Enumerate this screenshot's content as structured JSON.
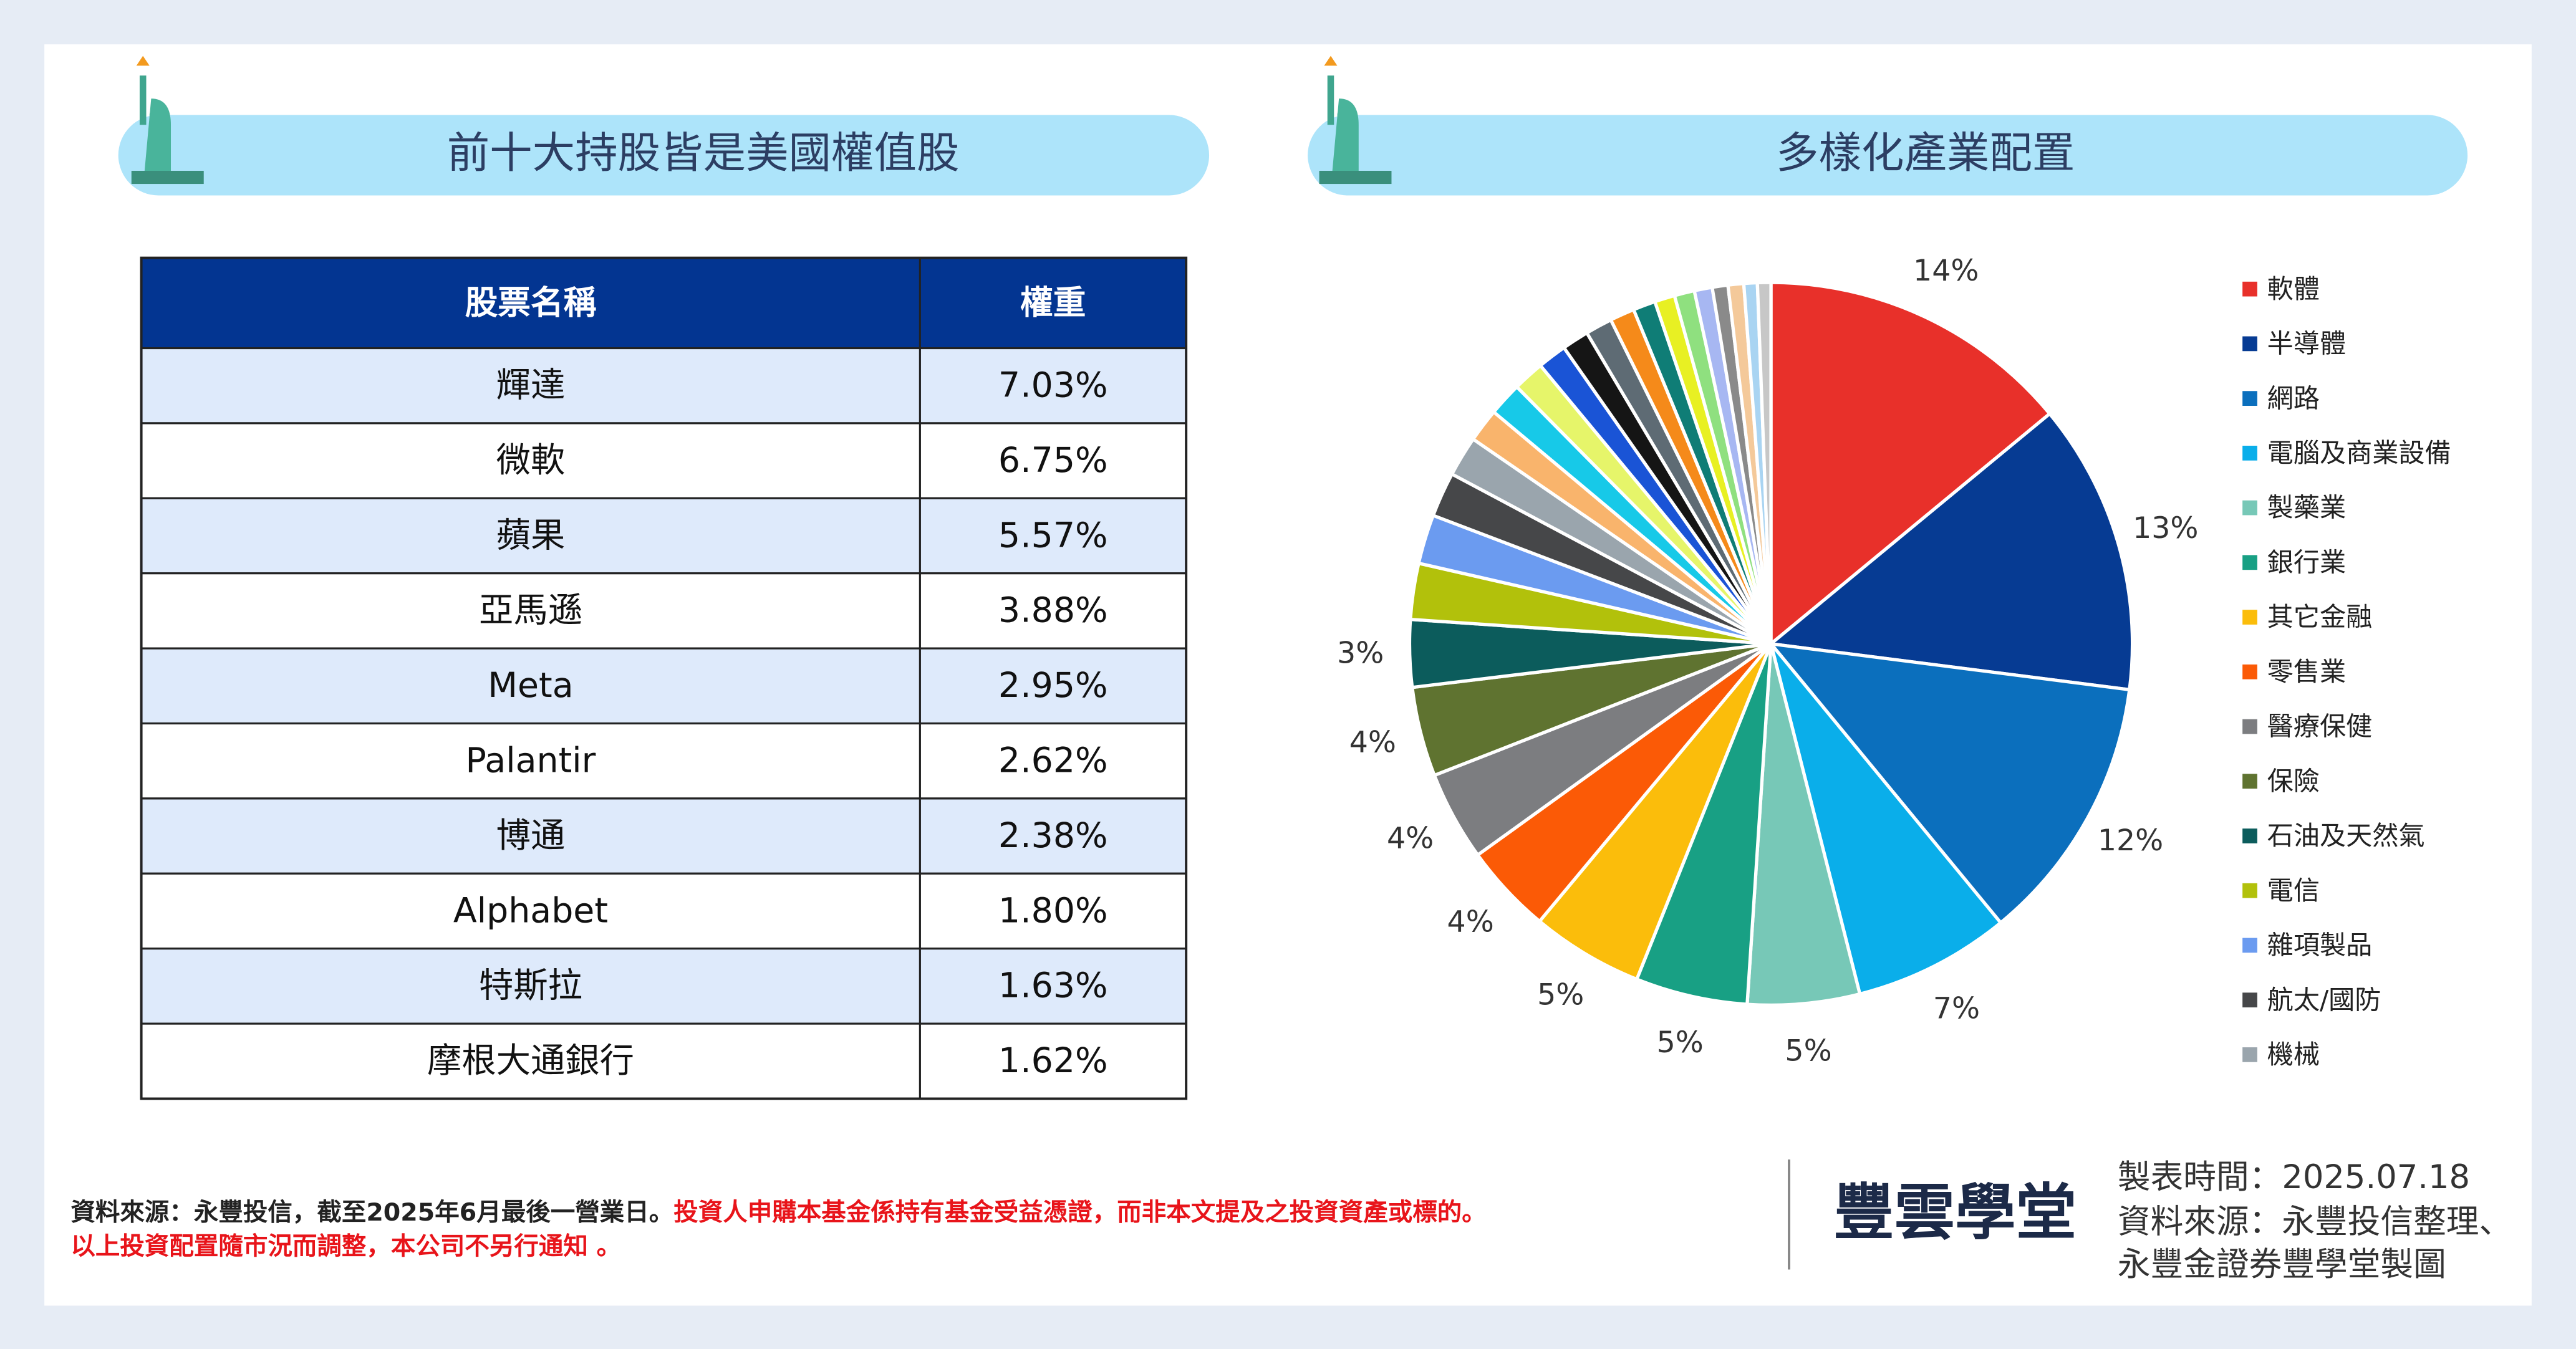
{
  "left_title": "前十大持股皆是美國權值股",
  "table": {
    "headers": [
      "股票名稱",
      "權重"
    ],
    "rows": [
      [
        "輝達",
        "7.03%"
      ],
      [
        "微軟",
        "6.75%"
      ],
      [
        "蘋果",
        "5.57%"
      ],
      [
        "亞馬遜",
        "3.88%"
      ],
      [
        "Meta",
        "2.95%"
      ],
      [
        "Palantir",
        "2.62%"
      ],
      [
        "博通",
        "2.38%"
      ],
      [
        "Alphabet",
        "1.80%"
      ],
      [
        "特斯拉",
        "1.63%"
      ],
      [
        "摩根大通銀行",
        "1.62%"
      ]
    ]
  },
  "chart_data": {
    "type": "pie",
    "title": "多樣化產業配置",
    "categories": [
      "軟體",
      "半導體",
      "網路",
      "電腦及商業設備",
      "製藥業",
      "銀行業",
      "其它金融",
      "零售業",
      "醫療保健",
      "保險",
      "石油及天然氣",
      "電信",
      "雜項製品",
      "航太/國防",
      "機械",
      null,
      null,
      null,
      null,
      null,
      null,
      null,
      null,
      null,
      null,
      null,
      null,
      null,
      null,
      null
    ],
    "values": [
      14,
      13,
      12,
      7,
      5,
      5,
      5,
      4,
      4,
      4,
      3,
      2.5,
      2.2,
      2,
      1.8,
      1.5,
      1.5,
      1.4,
      1.3,
      1.2,
      1.2,
      1.1,
      1.0,
      0.9,
      0.9,
      0.8,
      0.7,
      0.7,
      0.6,
      0.6
    ],
    "value_labels": [
      "14%",
      "13%",
      "12%",
      "7%",
      "5%",
      "5%",
      "5%",
      "4%",
      "4%",
      "4%",
      "3%",
      null,
      null,
      null,
      null,
      null,
      null,
      null,
      null,
      null,
      null,
      null,
      null,
      null,
      null,
      null,
      null,
      null,
      null,
      null
    ],
    "colors": [
      "#e8302a",
      "#063b93",
      "#0b6fbd",
      "#0aaeea",
      "#77c8b7",
      "#18a084",
      "#fbbd0b",
      "#fb5a06",
      "#7c7d80",
      "#5f7330",
      "#0c5c5c",
      "#b2c10b",
      "#6b9bf0",
      "#464749",
      "#9aa5ad",
      "#f9b46c",
      "#17c9e8",
      "#e6f56a",
      "#1a54d6",
      "#151515",
      "#5e6b74",
      "#f58a1a",
      "#0f7d76",
      "#e8f023",
      "#8fe07f",
      "#a7b7f2",
      "#8a8a8a",
      "#f4c99a",
      "#a9d4f2",
      "#c7c7c7"
    ]
  },
  "footer": {
    "source": "資料來源：永豐投信，截至2025年6月最後一營業日。",
    "disclaimer_1": "投資人申購本基金係持有基金受益憑證，而非本文提及之投資資產或標的。",
    "disclaimer_2": "以上投資配置隨市況而調整，本公司不另行通知 。",
    "logo": "豐雲學堂",
    "info": [
      "製表時間：2025.07.18",
      "資料來源：永豐投信整理、",
      "永豐金證券豐學堂製圖"
    ]
  }
}
